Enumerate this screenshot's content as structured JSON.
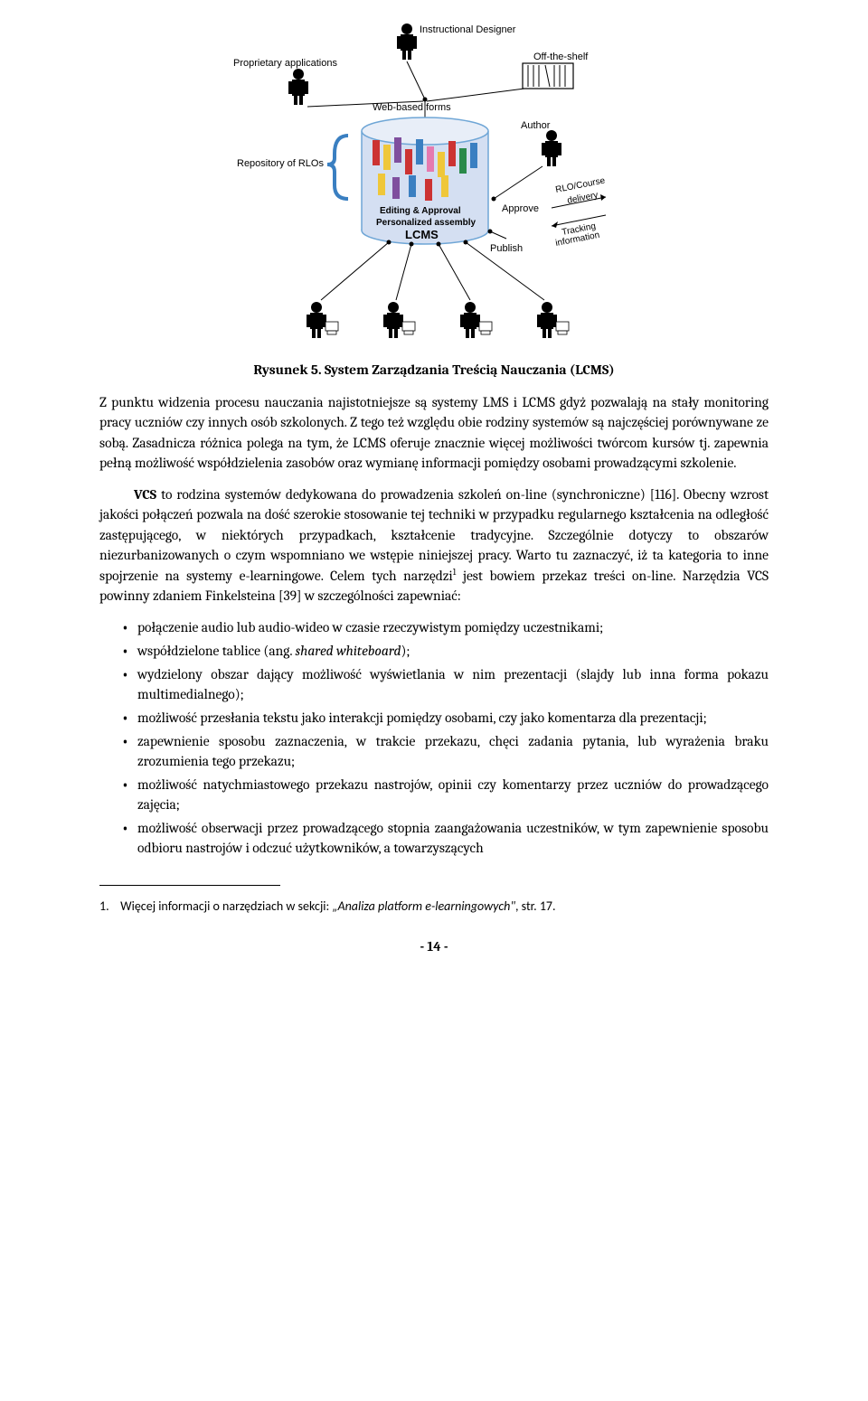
{
  "figure": {
    "labels": {
      "instructional_designer": "Instructional Designer",
      "proprietary_applications": "Proprietary applications",
      "off_the_shelf": "Off-the-shelf",
      "web_based_forms": "Web-based forms",
      "repository": "Repository of RLOs",
      "author": "Author",
      "editing_approval": "Editing & Approval",
      "personalized_assembly": "Personalized assembly",
      "lcms": "LCMS",
      "approve": "Approve",
      "publish": "Publish",
      "rlo_course": "RLO/Course",
      "delivery": "delivery",
      "tracking": "Tracking",
      "information": "information"
    },
    "colors": {
      "cylinder_fill": "#d4dff2",
      "cylinder_stroke": "#6fa6d6",
      "brace": "#3a7fc1",
      "person_black": "#000000",
      "rlo_colors": [
        "#cc3333",
        "#efc73a",
        "#7f4f9e",
        "#cc3333",
        "#3a7fc1",
        "#e57ab0",
        "#efc73a",
        "#cc3333",
        "#2a8a4a",
        "#3a7fc1",
        "#efc73a",
        "#7f4f9e",
        "#3a7fc1",
        "#cc3333",
        "#efc73a"
      ]
    },
    "caption_prefix": "Rysunek 5.",
    "caption_text": " System Zarządzania Treścią Nauczania (LCMS)"
  },
  "para1": "Z punktu widzenia procesu nauczania najistotniejsze są systemy LMS i LCMS gdyż pozwalają na stały monitoring pracy uczniów czy innych osób szkolonych. Z tego też względu obie rodziny systemów są najczęściej porównywane ze sobą. Zasadnicza różnica polega na tym, że LCMS oferuje znacznie więcej możliwości twórcom kursów tj. zapewnia pełną możliwość współdzielenia zasobów oraz wymianę informacji pomiędzy osobami prowadzącymi szkolenie.",
  "para2_firstword": "VCS",
  "para2_rest": " to rodzina systemów dedykowana do prowadzenia szkoleń on-line (synchroniczne) [116]. Obecny wzrost jakości połączeń pozwala na dość szerokie stosowanie tej techniki w przypadku regularnego kształcenia na odległość zastępującego, w niektórych przypadkach, kształcenie tradycyjne. Szczególnie dotyczy to obszarów niezurbanizowanych o czym wspomniano we wstępie niniejszej pracy. Warto tu zaznaczyć, iż ta kategoria to inne spojrzenie na systemy e-learningowe. Celem tych narzędzi",
  "para2_sup": "1",
  "para2_tail": " jest bowiem przekaz treści on-line. Narzędzia VCS powinny zdaniem Finkelsteina [39] w szczególności zapewniać:",
  "bullets": [
    "połączenie audio lub audio-wideo w czasie rzeczywistym pomiędzy uczestnikami;",
    "współdzielone tablice (ang. <i>shared whiteboard</i>);",
    "wydzielony obszar dający możliwość wyświetlania w nim prezentacji (slajdy lub inna forma pokazu multimedialnego);",
    "możliwość przesłania tekstu jako interakcji pomiędzy osobami, czy jako komentarza dla prezentacji;",
    "zapewnienie sposobu zaznaczenia, w trakcie przekazu, chęci zadania pytania, lub wyrażenia braku zrozumienia tego przekazu;",
    "możliwość natychmiastowego przekazu nastrojów, opinii czy komentarzy przez uczniów do prowadzącego zajęcia;",
    "możliwość obserwacji przez prowadzącego stopnia zaangażowania uczestników, w tym zapewnienie sposobu odbioru nastrojów i odczuć użytkowników, a towarzyszących"
  ],
  "footnote": {
    "num": "1.",
    "text_plain": "Więcej informacji o narzędziach w sekcji: ",
    "text_italic": "„Analiza platform e-learningowych\"",
    "text_tail": ", str. 17."
  },
  "pagenum": "- 14 -"
}
